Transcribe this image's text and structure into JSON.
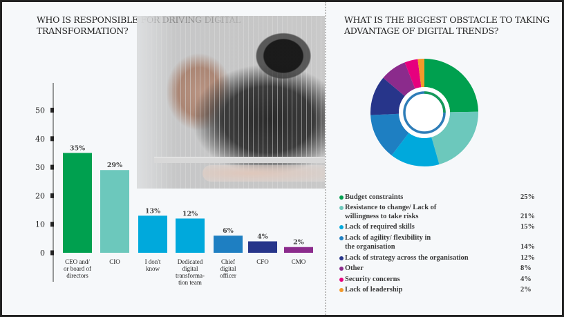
{
  "chart_data": [
    {
      "type": "bar",
      "title": "WHO IS RESPONSIBLE FOR DRIVING DIGITAL TRANSFORMATION?",
      "categories": [
        "CEO and/ or board of directors",
        "CIO",
        "I don't know",
        "Dedicated digital transforma-tion team",
        "Chief digital officer",
        "CFO",
        "CMO"
      ],
      "category_lines": [
        [
          "CEO and/",
          "or board of",
          "directors"
        ],
        [
          "CIO"
        ],
        [
          "I don't",
          "know"
        ],
        [
          "Dedicated",
          "digital",
          "transforma-",
          "tion team"
        ],
        [
          "Chief",
          "digital",
          "officer"
        ],
        [
          "CFO"
        ],
        [
          "CMO"
        ]
      ],
      "values": [
        35,
        29,
        13,
        12,
        6,
        4,
        2
      ],
      "data_labels": [
        "35%",
        "29%",
        "13%",
        "12%",
        "6%",
        "4%",
        "2%"
      ],
      "colors": [
        "#00a04f",
        "#6cc8bc",
        "#00a9dc",
        "#00a9dc",
        "#1e7fc2",
        "#27358a",
        "#8b2b8c"
      ],
      "yticks": [
        0,
        10,
        20,
        30,
        40,
        50
      ],
      "ylim": [
        0,
        50
      ],
      "xlabel": "",
      "ylabel": "",
      "grid": false
    },
    {
      "type": "pie",
      "title": "WHAT IS THE BIGGEST OBSTACLE TO TAKING ADVANTAGE OF DIGITAL TRENDS?",
      "labels": [
        "Budget constraints",
        "Resistance to change/ Lack of willingness to take risks",
        "Lack of required skills",
        "Lack of agility/ flexibility in the organisation",
        "Lack of strategy across the organisation",
        "Other",
        "Security concerns",
        "Lack of leadership"
      ],
      "label_lines": [
        [
          "Budget constraints"
        ],
        [
          "Resistance to change/ Lack of",
          "willingness to take risks"
        ],
        [
          "Lack of required skills"
        ],
        [
          "Lack of agility/ flexibility in",
          "the organisation"
        ],
        [
          "Lack of strategy across the organisation"
        ],
        [
          "Other"
        ],
        [
          "Security concerns"
        ],
        [
          "Lack of leadership"
        ]
      ],
      "values": [
        25,
        21,
        15,
        14,
        12,
        8,
        4,
        2
      ],
      "value_labels": [
        "25%",
        "21%",
        "15%",
        "14%",
        "12%",
        "8%",
        "4%",
        "2%"
      ],
      "colors": [
        "#00a04f",
        "#6cc8bc",
        "#00a9dc",
        "#1e7fc2",
        "#27358a",
        "#8b2b8c",
        "#e6007e",
        "#f39a2b"
      ],
      "donut": true,
      "legend": "bottom"
    }
  ]
}
